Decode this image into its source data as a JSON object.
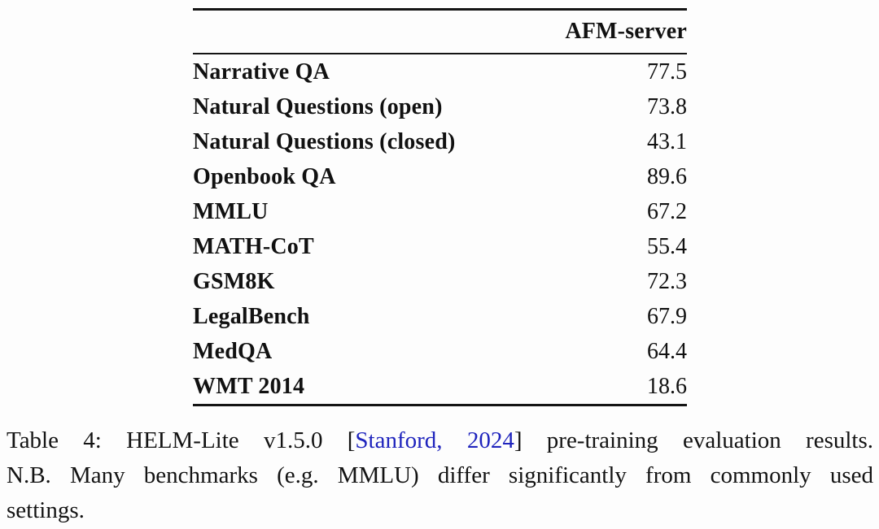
{
  "table": {
    "header": {
      "value_column": "AFM-server"
    },
    "rows": [
      {
        "label": "Narrative QA",
        "value": "77.5"
      },
      {
        "label": "Natural Questions (open)",
        "value": "73.8"
      },
      {
        "label": "Natural Questions (closed)",
        "value": "43.1"
      },
      {
        "label": "Openbook QA",
        "value": "89.6"
      },
      {
        "label": "MMLU",
        "value": "67.2"
      },
      {
        "label": "MATH-CoT",
        "value": "55.4"
      },
      {
        "label": "GSM8K",
        "value": "72.3"
      },
      {
        "label": "LegalBench",
        "value": "67.9"
      },
      {
        "label": "MedQA",
        "value": "64.4"
      },
      {
        "label": "WMT 2014",
        "value": "18.6"
      }
    ]
  },
  "caption": {
    "line1_prefix": "Table 4: HELM-Lite v1.5.0 [",
    "line1_link": "Stanford, 2024",
    "line1_suffix": "] pre-training evaluation results.",
    "line2": "N.B. Many benchmarks (e.g. MMLU) differ significantly from commonly used",
    "line3": "settings."
  },
  "colors": {
    "link_blue": "#1f24bd",
    "text": "#131313",
    "rule": "#141414",
    "background": "#fdfdfd"
  }
}
